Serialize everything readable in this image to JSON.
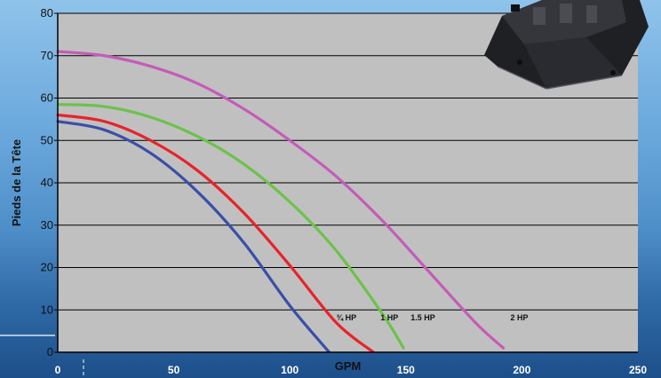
{
  "chart_data": {
    "type": "line",
    "title": "",
    "xlabel": "GPM",
    "ylabel": "Pieds de la Tête",
    "xlim": [
      0,
      250
    ],
    "ylim": [
      0,
      80
    ],
    "x_ticks": [
      "0",
      "50",
      "100",
      "150",
      "200",
      "250"
    ],
    "y_ticks": [
      "0",
      "10",
      "20",
      "30",
      "40",
      "50",
      "60",
      "70",
      "80"
    ],
    "grid": true,
    "legend": "none",
    "series": [
      {
        "name": "¾ HP",
        "color": "#3a4fa8",
        "x": [
          0,
          20,
          40,
          60,
          80,
          100,
          117
        ],
        "y": [
          54.5,
          52.5,
          47,
          38,
          26,
          11,
          0
        ]
      },
      {
        "name": "1 HP",
        "color": "#e8232a",
        "x": [
          0,
          20,
          40,
          60,
          80,
          100,
          120,
          136
        ],
        "y": [
          56,
          54.5,
          50,
          43,
          33,
          20.5,
          7,
          0
        ]
      },
      {
        "name": "1.5 HP",
        "color": "#6cc24a",
        "x": [
          0,
          20,
          40,
          60,
          80,
          100,
          120,
          140,
          149
        ],
        "y": [
          58.5,
          58,
          55.5,
          51,
          44.5,
          35.5,
          24,
          9,
          1
        ]
      },
      {
        "name": "2 HP",
        "color": "#c45cb8",
        "x": [
          0,
          20,
          40,
          60,
          80,
          100,
          120,
          140,
          160,
          180,
          192
        ],
        "y": [
          71,
          70,
          67.5,
          63.5,
          57.5,
          50,
          41.5,
          31,
          19,
          7,
          1
        ]
      }
    ]
  }
}
